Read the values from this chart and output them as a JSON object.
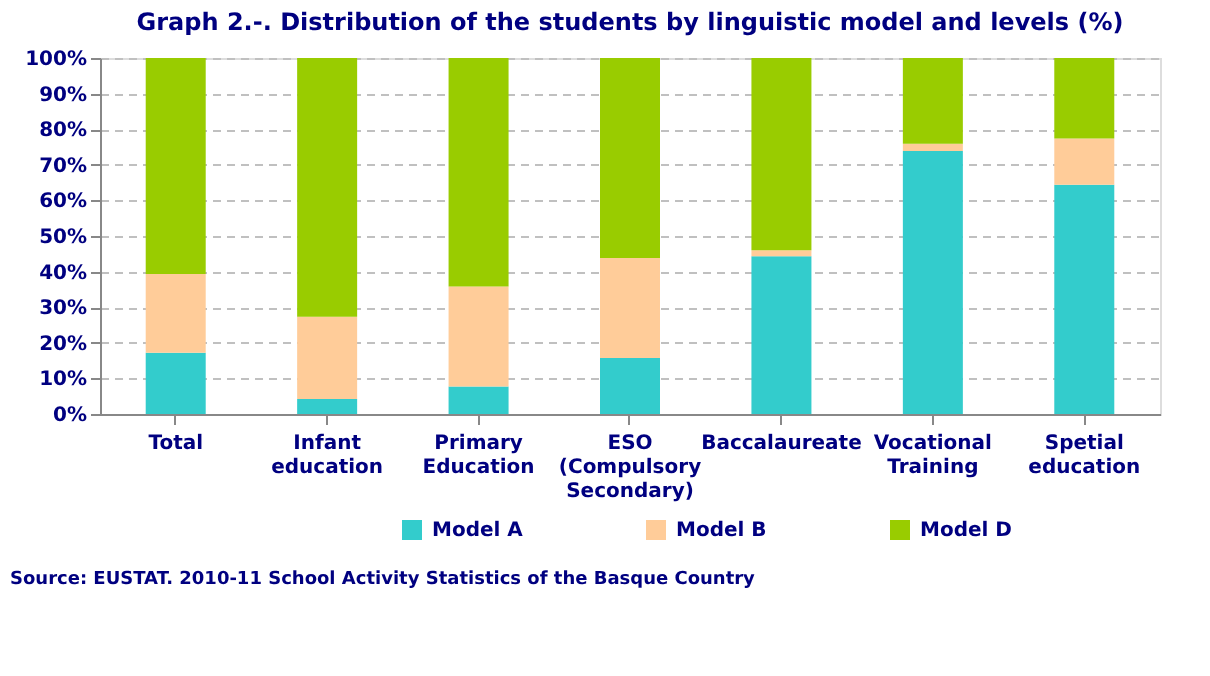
{
  "chart_data": {
    "type": "bar",
    "stacked": true,
    "title": "Graph 2.-. Distribution of the students by linguistic model and levels (%)",
    "categories": [
      "Total",
      "Infant education",
      "Primary Education",
      "ESO (Compulsory Secondary)",
      "Baccalaureate",
      "Vocational Training",
      "Spetial education"
    ],
    "series": [
      {
        "name": "Model A",
        "color": "#33cccc",
        "values": [
          17.2,
          4.2,
          7.7,
          15.7,
          44.3,
          73.9,
          64.4
        ]
      },
      {
        "name": "Model B",
        "color": "#ffcc99",
        "values": [
          22.1,
          23.1,
          28.1,
          28.1,
          1.7,
          2.0,
          13.0
        ]
      },
      {
        "name": "Model D",
        "color": "#99cc00",
        "values": [
          60.7,
          72.7,
          64.2,
          56.2,
          54.0,
          24.1,
          22.6
        ]
      }
    ],
    "ylim": [
      0,
      100
    ],
    "yticks": [
      {
        "value": 0,
        "label": "0%"
      },
      {
        "value": 10,
        "label": "10%"
      },
      {
        "value": 20,
        "label": "20%"
      },
      {
        "value": 30,
        "label": "30%"
      },
      {
        "value": 40,
        "label": "40%"
      },
      {
        "value": 50,
        "label": "50%"
      },
      {
        "value": 60,
        "label": "60%"
      },
      {
        "value": 70,
        "label": "70%"
      },
      {
        "value": 80,
        "label": "80%"
      },
      {
        "value": 90,
        "label": "90%"
      },
      {
        "value": 100,
        "label": "100%"
      }
    ],
    "grid": "y",
    "legend": "bottom",
    "annotations": [
      "Source: EUSTAT. 2010-11 School Activity Statistics of the Basque Country"
    ]
  }
}
